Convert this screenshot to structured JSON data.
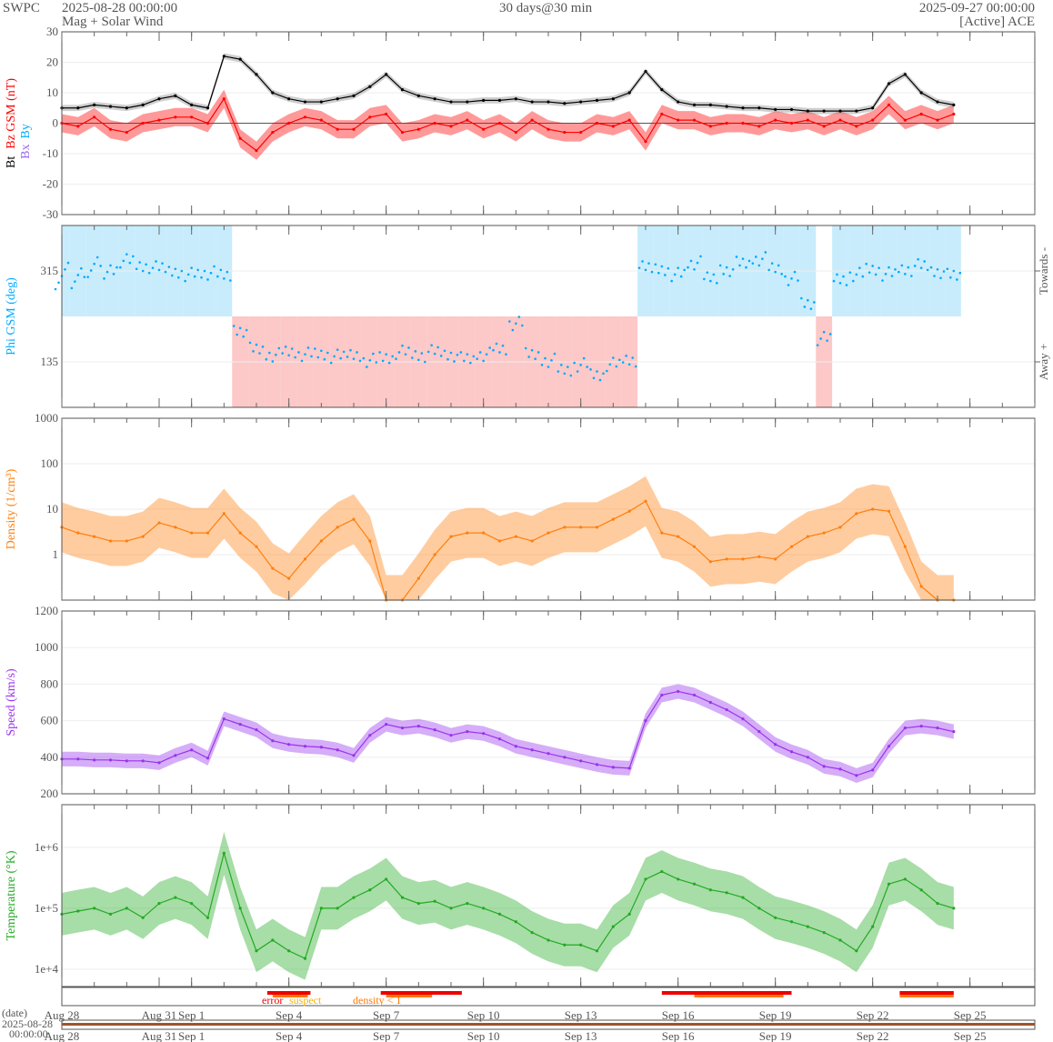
{
  "header": {
    "agency": "SWPC",
    "start": "2025-08-28 00:00:00",
    "product": "Mag + Solar Wind",
    "span": "30 days@30 min",
    "end": "2025-09-27 00:00:00",
    "source": "[Active] ACE"
  },
  "x_axis": {
    "start": "2025-08-28T00:00",
    "end": "2025-09-27T00:00",
    "ticks": [
      {
        "date": "2025-08-28",
        "label": "Aug 28"
      },
      {
        "date": "2025-08-31",
        "label": "Aug 31"
      },
      {
        "date": "2025-09-01",
        "label": "Sep 1"
      },
      {
        "date": "2025-09-04",
        "label": "Sep 4"
      },
      {
        "date": "2025-09-07",
        "label": "Sep 7"
      },
      {
        "date": "2025-09-10",
        "label": "Sep 10"
      },
      {
        "date": "2025-09-13",
        "label": "Sep 13"
      },
      {
        "date": "2025-09-16",
        "label": "Sep 16"
      },
      {
        "date": "2025-09-19",
        "label": "Sep 19"
      },
      {
        "date": "2025-09-22",
        "label": "Sep 22"
      },
      {
        "date": "2025-09-25",
        "label": "Sep 25"
      }
    ],
    "date_label": "(date)",
    "date_value_1": "2025-08-28",
    "date_value_2": "00:00:00"
  },
  "chart_data": [
    {
      "type": "line",
      "id": "mag",
      "ylabel_parts": [
        "Bt",
        "Bz GSM (nT)",
        "Bx",
        "By"
      ],
      "ylim": [
        -30,
        30
      ],
      "yticks": [
        30,
        20,
        10,
        0,
        -10,
        -20,
        -30
      ],
      "colors": {
        "Bt": "#000000",
        "Bz": "#ff0000",
        "Bx": "#9966ee",
        "By": "#00aaff"
      },
      "series": [
        {
          "name": "Bt",
          "values": [
            5,
            5,
            6,
            5.5,
            5,
            6,
            8,
            9,
            6,
            5,
            22,
            21,
            16,
            10,
            8,
            7,
            7,
            8,
            9,
            12,
            16,
            11,
            9,
            8,
            7,
            7,
            7.5,
            7.5,
            8,
            7,
            7,
            6.5,
            7,
            7.5,
            8,
            10,
            17,
            11,
            7,
            6,
            6,
            5.5,
            5,
            5,
            4.5,
            4.5,
            4,
            4,
            4,
            4,
            5,
            13,
            16,
            10,
            7,
            6
          ]
        },
        {
          "name": "Bz",
          "values": [
            0,
            -1,
            2,
            -2,
            -3,
            0,
            1,
            2,
            2,
            0,
            8,
            -5,
            -9,
            -3,
            0,
            2,
            1,
            -2,
            -2,
            2,
            3,
            -3,
            -2,
            0,
            -1,
            1,
            -2,
            0,
            -3,
            1,
            -2,
            -3,
            -3,
            0,
            -1,
            1,
            -6,
            3,
            1,
            1,
            -1,
            0,
            0,
            -1,
            1,
            0,
            1,
            -1,
            1,
            -1,
            1,
            6,
            1,
            3,
            1,
            3
          ]
        }
      ]
    },
    {
      "type": "scatter",
      "id": "phi",
      "ylabel": "Phi GSM (deg)",
      "ylim": [
        45,
        405
      ],
      "yticks": [
        315,
        135
      ],
      "right_labels": [
        "Towards -",
        "Away +"
      ],
      "colors": {
        "points": "#00aaff",
        "towards": "#c8ecfc",
        "away": "#fcc8c8"
      },
      "series": [
        {
          "name": "Phi",
          "values": [
            320,
            315,
            330,
            320,
            335,
            325,
            320,
            315,
            310,
            310,
            305,
            200,
            160,
            150,
            155,
            150,
            150,
            145,
            150,
            140,
            145,
            155,
            150,
            155,
            150,
            140,
            150,
            160,
            210,
            150,
            140,
            120,
            130,
            110,
            130,
            140,
            320,
            320,
            310,
            330,
            300,
            320,
            330,
            340,
            320,
            300,
            250,
            180,
            300,
            310,
            320,
            310,
            320,
            325,
            315,
            305
          ]
        }
      ]
    },
    {
      "type": "line",
      "id": "density",
      "ylabel": "Density (1/cm³)",
      "yscale": "log",
      "ylim": [
        0.1,
        1000
      ],
      "yticks": [
        {
          "v": 1000,
          "l": "1000"
        },
        {
          "v": 100,
          "l": "100"
        },
        {
          "v": 10,
          "l": "10"
        },
        {
          "v": 1,
          "l": "1"
        }
      ],
      "color": "#ff7f0e",
      "series": [
        {
          "name": "Density",
          "values": [
            4,
            3,
            2.5,
            2,
            2,
            2.5,
            5,
            4,
            3,
            3,
            8,
            3,
            1.5,
            0.5,
            0.3,
            0.8,
            2,
            4,
            6,
            2,
            0.1,
            0.1,
            0.3,
            1,
            2.5,
            3,
            3,
            2,
            2.5,
            2,
            3,
            4,
            4,
            4,
            6,
            9,
            15,
            3,
            2.5,
            1.5,
            0.7,
            0.8,
            0.8,
            0.9,
            0.8,
            1.5,
            2.5,
            3,
            4,
            8,
            10,
            9,
            1.5,
            0.2,
            0.1,
            0.1
          ]
        }
      ]
    },
    {
      "type": "line",
      "id": "speed",
      "ylabel": "Speed (km/s)",
      "ylim": [
        200,
        1200
      ],
      "yticks": [
        1200,
        1000,
        800,
        600,
        400,
        200
      ],
      "color": "#9933ee",
      "series": [
        {
          "name": "Speed",
          "values": [
            390,
            390,
            385,
            385,
            380,
            380,
            370,
            410,
            440,
            395,
            610,
            580,
            550,
            490,
            470,
            460,
            455,
            440,
            410,
            520,
            580,
            560,
            570,
            550,
            520,
            540,
            530,
            500,
            460,
            440,
            420,
            400,
            380,
            360,
            345,
            340,
            600,
            740,
            760,
            740,
            700,
            660,
            610,
            540,
            470,
            430,
            400,
            350,
            335,
            300,
            330,
            460,
            560,
            570,
            560,
            540
          ]
        }
      ]
    },
    {
      "type": "line",
      "id": "temperature",
      "ylabel": "Temperature (°K)",
      "yscale": "log",
      "ylim": [
        5200,
        5000000
      ],
      "yticks": [
        {
          "v": 1000000,
          "l": "1e+6"
        },
        {
          "v": 100000,
          "l": "1e+5"
        },
        {
          "v": 10000,
          "l": "1e+4"
        }
      ],
      "color": "#22aa22",
      "series": [
        {
          "name": "Temperature",
          "values": [
            80000,
            90000,
            100000,
            80000,
            100000,
            70000,
            120000,
            150000,
            120000,
            70000,
            800000,
            100000,
            20000,
            30000,
            20000,
            15000,
            100000,
            100000,
            150000,
            200000,
            300000,
            150000,
            120000,
            130000,
            100000,
            120000,
            100000,
            80000,
            60000,
            40000,
            30000,
            25000,
            25000,
            20000,
            50000,
            80000,
            300000,
            400000,
            300000,
            250000,
            200000,
            180000,
            150000,
            100000,
            70000,
            60000,
            50000,
            40000,
            30000,
            20000,
            50000,
            250000,
            300000,
            200000,
            120000,
            100000
          ]
        }
      ]
    }
  ],
  "times": [
    "2025-08-28T00:00",
    "2025-08-28T12:00",
    "2025-08-29T00:00",
    "2025-08-29T12:00",
    "2025-08-30T00:00",
    "2025-08-30T12:00",
    "2025-08-31T00:00",
    "2025-08-31T12:00",
    "2025-09-01T00:00",
    "2025-09-01T12:00",
    "2025-09-02T00:00",
    "2025-09-02T12:00",
    "2025-09-03T00:00",
    "2025-09-03T12:00",
    "2025-09-04T00:00",
    "2025-09-04T12:00",
    "2025-09-05T00:00",
    "2025-09-05T12:00",
    "2025-09-06T00:00",
    "2025-09-06T12:00",
    "2025-09-07T00:00",
    "2025-09-07T12:00",
    "2025-09-08T00:00",
    "2025-09-08T12:00",
    "2025-09-09T00:00",
    "2025-09-09T12:00",
    "2025-09-10T00:00",
    "2025-09-10T12:00",
    "2025-09-11T00:00",
    "2025-09-11T12:00",
    "2025-09-12T00:00",
    "2025-09-12T12:00",
    "2025-09-13T00:00",
    "2025-09-13T12:00",
    "2025-09-14T00:00",
    "2025-09-14T12:00",
    "2025-09-15T00:00",
    "2025-09-15T12:00",
    "2025-09-16T00:00",
    "2025-09-16T12:00",
    "2025-09-17T00:00",
    "2025-09-17T12:00",
    "2025-09-18T00:00",
    "2025-09-18T12:00",
    "2025-09-19T00:00",
    "2025-09-19T12:00",
    "2025-09-20T00:00",
    "2025-09-20T12:00",
    "2025-09-21T00:00",
    "2025-09-21T12:00",
    "2025-09-22T00:00",
    "2025-09-22T12:00",
    "2025-09-23T00:00",
    "2025-09-23T12:00",
    "2025-09-24T00:00",
    "2025-09-24T12:00"
  ],
  "flags": {
    "legend": [
      {
        "label": "error",
        "color": "#ee0000"
      },
      {
        "label": "suspect",
        "color": "#f0b000"
      },
      {
        "label": "density < 1",
        "color": "#ff7700"
      }
    ],
    "error": [
      [
        "2025-09-03T08:00",
        "2025-09-04T16:00"
      ],
      [
        "2025-09-06T20:00",
        "2025-09-09T08:00"
      ],
      [
        "2025-09-15T12:00",
        "2025-09-19T12:00"
      ],
      [
        "2025-09-22T20:00",
        "2025-09-24T12:00"
      ]
    ],
    "density_low": [
      [
        "2025-09-03T12:00",
        "2025-09-04T14:00"
      ],
      [
        "2025-09-07T00:00",
        "2025-09-08T10:00"
      ],
      [
        "2025-09-16T12:00",
        "2025-09-19T06:00"
      ],
      [
        "2025-09-22T20:00",
        "2025-09-24T12:00"
      ]
    ]
  }
}
